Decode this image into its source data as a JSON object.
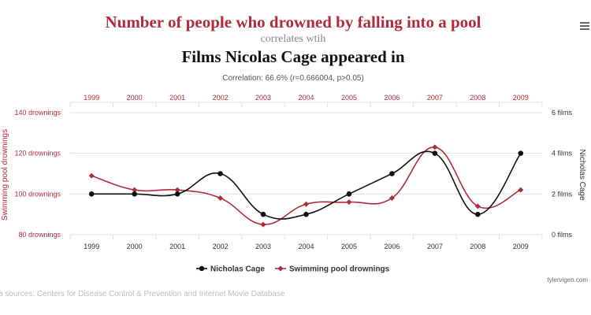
{
  "header": {
    "title": "Number of people who drowned by falling into a pool",
    "connector": "correlates wtih",
    "subtitle": "Films Nicolas Cage appeared in",
    "correlation": "Correlation: 66.6% (r=0.666004, p>0.05)"
  },
  "footer": {
    "credit": "tylervigen.com",
    "sources": "a sources: Centers for Disease Control & Prevention and Internet Movie Database"
  },
  "colors": {
    "series_cage": "#111111",
    "series_pool": "#b22b3a",
    "grid": "#d8e3ea"
  },
  "chart_data": {
    "type": "line",
    "x": [
      "1999",
      "2000",
      "2001",
      "2002",
      "2003",
      "2004",
      "2005",
      "2006",
      "2007",
      "2008",
      "2009"
    ],
    "series": [
      {
        "name": "Nicholas Cage",
        "axis": "right",
        "values": [
          2,
          2,
          2,
          3,
          1,
          1,
          2,
          3,
          4,
          1,
          4
        ]
      },
      {
        "name": "Swimming pool drownings",
        "axis": "left",
        "values": [
          109,
          102,
          102,
          98,
          85,
          95,
          96,
          98,
          123,
          94,
          102
        ]
      }
    ],
    "y_left": {
      "label": "Swimming pool drownings",
      "range": [
        80,
        140
      ],
      "ticks": [
        {
          "value": 80,
          "label": "80 drownings"
        },
        {
          "value": 100,
          "label": "100 drownings"
        },
        {
          "value": 120,
          "label": "120 drownings"
        },
        {
          "value": 140,
          "label": "140 drownings"
        }
      ]
    },
    "y_right": {
      "label": "Nicholas Cage",
      "range": [
        0,
        6
      ],
      "ticks": [
        {
          "value": 0,
          "label": "0 films"
        },
        {
          "value": 2,
          "label": "2 films"
        },
        {
          "value": 4,
          "label": "4 films"
        },
        {
          "value": 6,
          "label": "6 films"
        }
      ]
    },
    "grid": true,
    "legend": "bottom-center"
  }
}
